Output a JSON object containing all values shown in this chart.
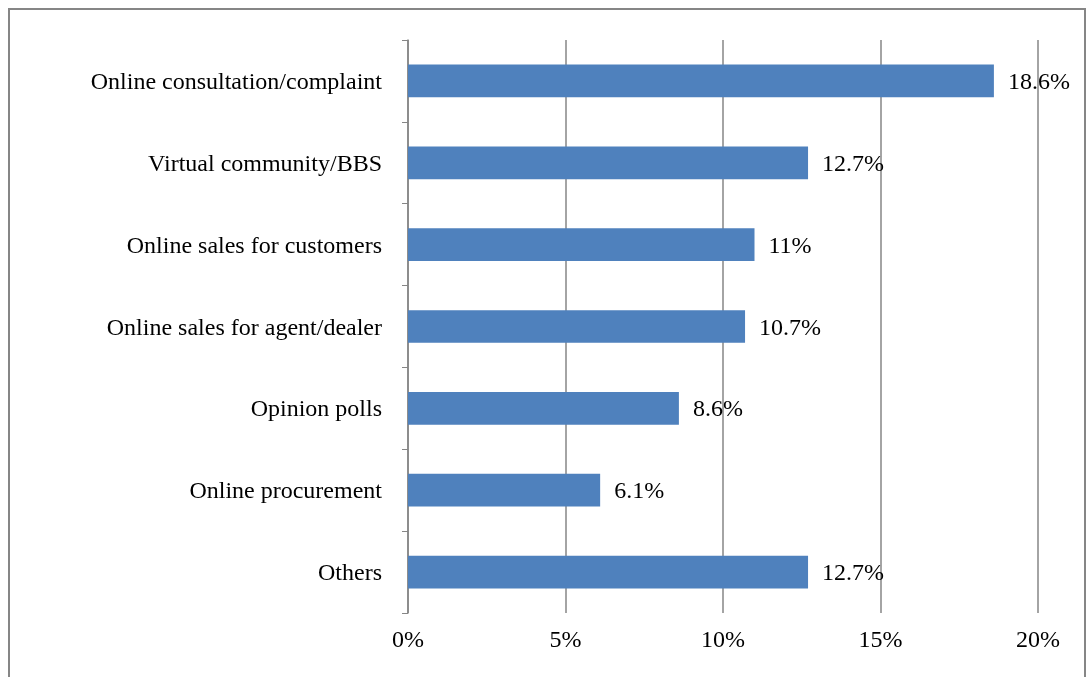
{
  "chart_data": {
    "type": "bar",
    "orientation": "horizontal",
    "categories": [
      "Online consultation/complaint",
      "Virtual community/BBS",
      "Online sales for customers",
      "Online sales for agent/dealer",
      "Opinion polls",
      "Online procurement",
      "Others"
    ],
    "values": [
      18.6,
      12.7,
      11,
      10.7,
      8.6,
      6.1,
      12.7
    ],
    "value_labels": [
      "18.6%",
      "12.7%",
      "11%",
      "10.7%",
      "8.6%",
      "6.1%",
      "12.7%"
    ],
    "color": "#4f81bd",
    "xlim": [
      0,
      20
    ],
    "xticks": [
      {
        "value": 0,
        "label": "0%"
      },
      {
        "value": 5,
        "label": "5%"
      },
      {
        "value": 10,
        "label": "10%"
      },
      {
        "value": 15,
        "label": "15%"
      },
      {
        "value": 20,
        "label": "20%"
      }
    ],
    "grid": "x"
  }
}
